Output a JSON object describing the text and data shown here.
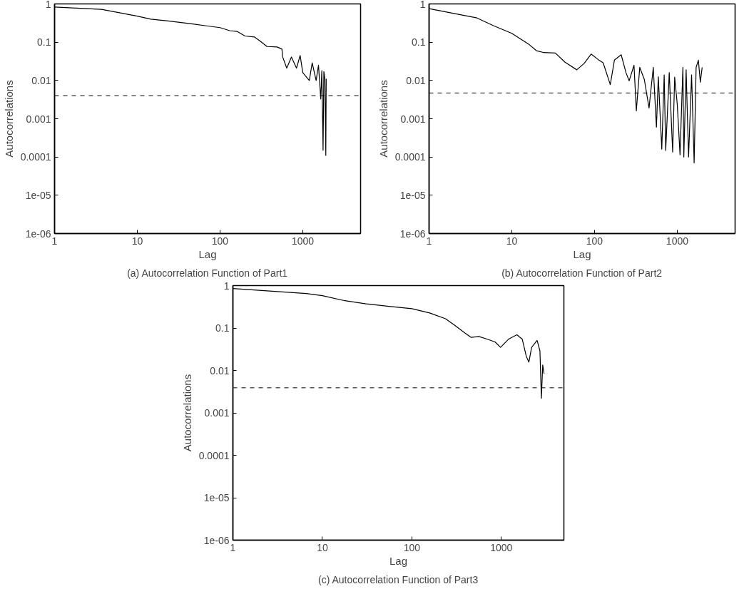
{
  "chart_data": [
    {
      "type": "line",
      "title": "(a) Autocorrelation Function of Part1",
      "xlabel": "Lag",
      "ylabel": "Autocorrelations",
      "log": "xy",
      "xlim": [
        1,
        5000
      ],
      "ylim": [
        1e-06,
        1
      ],
      "xticks": [
        1,
        10,
        100,
        1000
      ],
      "yticks": [
        1,
        0.1,
        0.01,
        0.001,
        0.0001,
        1e-05,
        1e-06
      ],
      "series": [
        {
          "color": "#000000",
          "x": [
            1,
            3.7,
            10,
            14.6,
            23.6,
            47,
            66,
            100,
            131,
            162,
            200,
            260,
            300,
            370,
            490,
            560,
            570,
            640,
            730,
            840,
            930,
            1000,
            1200,
            1300,
            1450,
            1550,
            1650,
            1700,
            1760,
            1800,
            1850,
            1900,
            1920
          ],
          "values": [
            0.83,
            0.72,
            0.48,
            0.4,
            0.36,
            0.3,
            0.27,
            0.24,
            0.2,
            0.19,
            0.145,
            0.137,
            0.11,
            0.077,
            0.075,
            0.066,
            0.042,
            0.021,
            0.041,
            0.021,
            0.045,
            0.016,
            0.01,
            0.029,
            0.01,
            0.025,
            0.0033,
            0.018,
            0.00015,
            0.017,
            0.011,
            0.00011,
            0.011
          ]
        }
      ],
      "ref_lines": [
        {
          "axis": "y",
          "value": 0.004,
          "line_style": "dashed"
        }
      ]
    },
    {
      "type": "line",
      "title": "(b) Autocorrelation Function of Part2",
      "xlabel": "Lag",
      "ylabel": "Autocorrelations",
      "log": "xy",
      "xlim": [
        1,
        5000
      ],
      "ylim": [
        1e-06,
        1
      ],
      "xticks": [
        1,
        10,
        100,
        1000
      ],
      "yticks": [
        1,
        0.1,
        0.01,
        0.001,
        0.0001,
        1e-05,
        1e-06
      ],
      "series": [
        {
          "color": "#000000",
          "x": [
            1,
            3.8,
            6,
            10,
            16,
            19.8,
            24,
            33.6,
            44,
            61,
            75,
            91,
            111,
            127,
            155,
            174,
            210,
            240,
            262,
            300,
            320,
            352,
            400,
            456,
            513,
            560,
            590,
            650,
            695,
            725,
            800,
            880,
            930,
            1000,
            1080,
            1170,
            1200,
            1280,
            1370,
            1490,
            1600,
            1690,
            1800,
            1900,
            2000
          ],
          "values": [
            0.75,
            0.43,
            0.27,
            0.17,
            0.089,
            0.06,
            0.054,
            0.052,
            0.03,
            0.019,
            0.028,
            0.049,
            0.035,
            0.029,
            0.0078,
            0.034,
            0.047,
            0.016,
            0.0098,
            0.025,
            0.0016,
            0.022,
            0.0106,
            0.0019,
            0.022,
            0.0006,
            0.0125,
            0.00016,
            0.014,
            0.000148,
            0.016,
            0.000134,
            0.0122,
            0.0024,
            0.000114,
            0.022,
            0.0001,
            0.019,
            0.0001,
            0.014,
            7e-05,
            0.022,
            0.034,
            0.009,
            0.022
          ]
        }
      ],
      "ref_lines": [
        {
          "axis": "y",
          "value": 0.0047,
          "line_style": "dashed"
        }
      ]
    },
    {
      "type": "line",
      "title": "(c) Autocorrelation Function of Part3",
      "xlabel": "Lag",
      "ylabel": "Autocorrelations",
      "log": "xy",
      "xlim": [
        1,
        5000
      ],
      "ylim": [
        1e-06,
        1
      ],
      "xticks": [
        1,
        10,
        100,
        1000
      ],
      "yticks": [
        1,
        0.1,
        0.01,
        0.001,
        0.0001,
        1e-05,
        1e-06
      ],
      "series": [
        {
          "color": "#000000",
          "x": [
            1,
            6.6,
            10,
            17.8,
            31,
            58,
            100,
            158,
            238,
            300,
            387,
            460,
            560,
            690,
            850,
            980,
            1210,
            1490,
            1710,
            1900,
            2030,
            2180,
            2510,
            2700,
            2800,
            2900,
            3000
          ],
          "values": [
            0.855,
            0.65,
            0.58,
            0.44,
            0.37,
            0.32,
            0.285,
            0.226,
            0.165,
            0.117,
            0.078,
            0.06,
            0.063,
            0.055,
            0.047,
            0.035,
            0.055,
            0.069,
            0.055,
            0.0215,
            0.0157,
            0.035,
            0.051,
            0.029,
            0.0022,
            0.0135,
            0.0084
          ]
        }
      ],
      "ref_lines": [
        {
          "axis": "y",
          "value": 0.0039,
          "line_style": "dashed"
        }
      ]
    }
  ]
}
